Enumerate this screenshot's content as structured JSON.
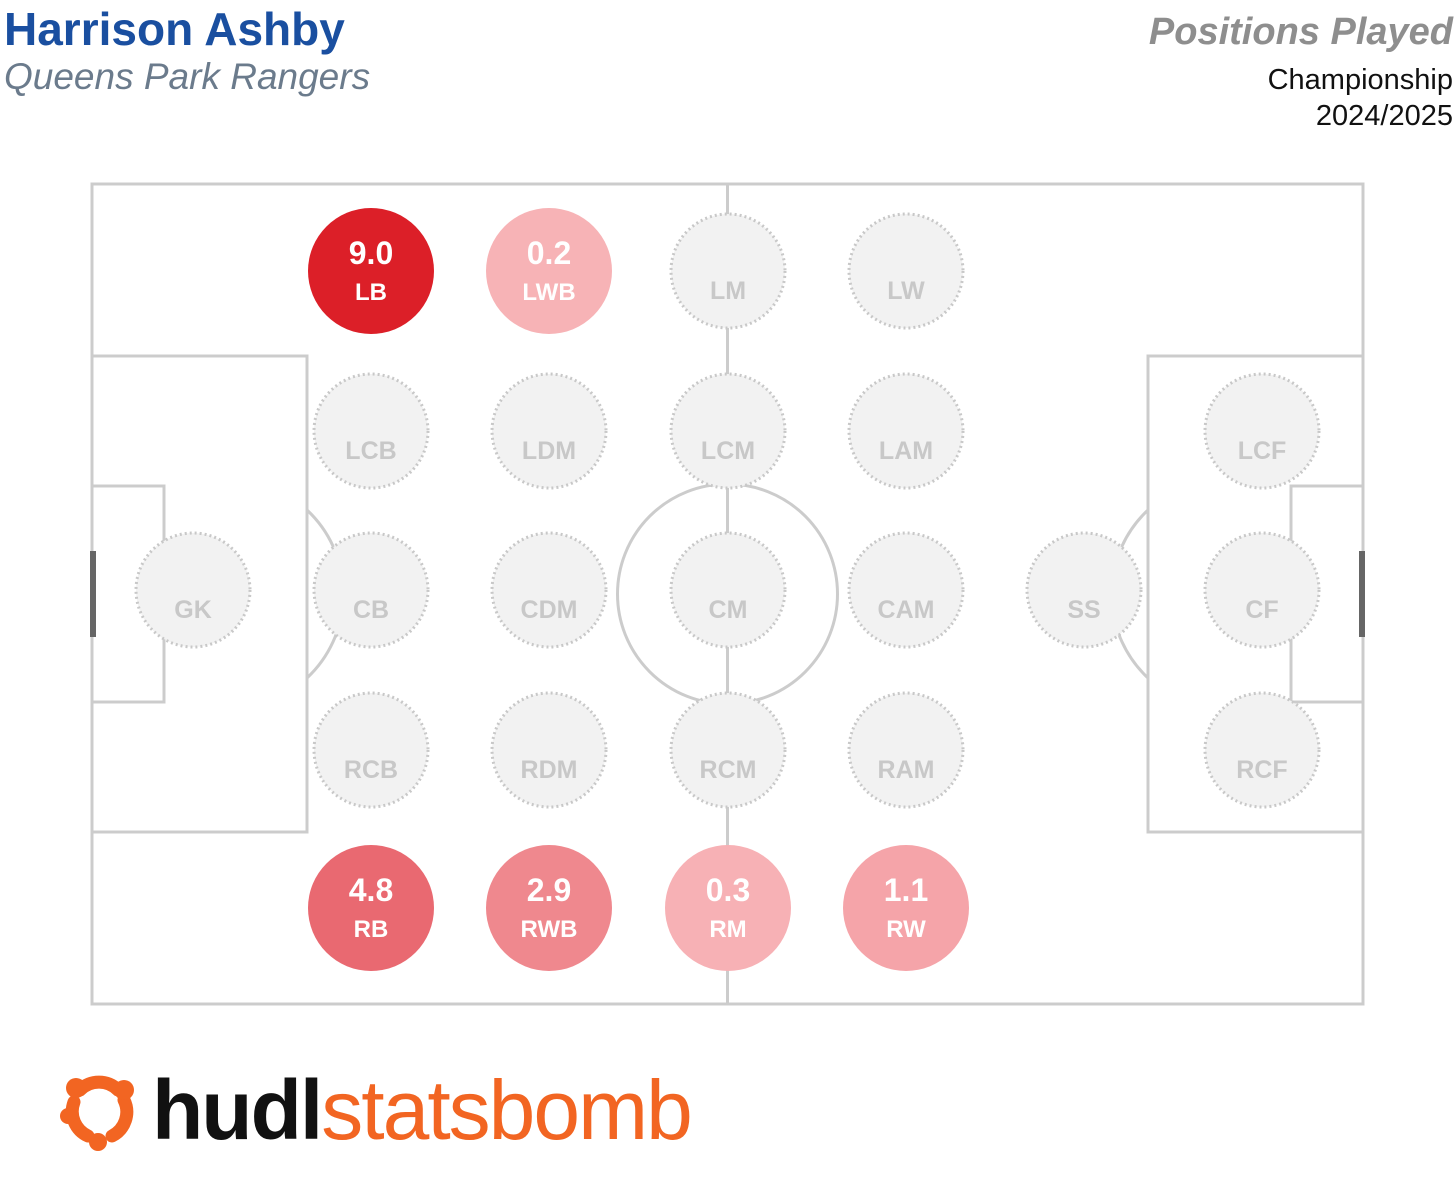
{
  "header": {
    "player_name": "Harrison Ashby",
    "team_name": "Queens Park Rangers",
    "chart_title": "Positions Played",
    "competition": "Championship",
    "season": "2024/2025"
  },
  "brand": {
    "logo_part_1": "hudl",
    "logo_part_2": "statsbomb",
    "logo_icon": "statsbomb-logo-icon",
    "brand_color": "#f26522"
  },
  "colors": {
    "pitch_line": "#cccccc",
    "empty_fill": "#f2f2f2",
    "empty_stroke": "#c8c8c8",
    "empty_text": "#c8c8c8",
    "scale": [
      "#f8b6b9",
      "#ea6e76",
      "#dc1f28"
    ]
  },
  "chart_data": {
    "type": "pitch-position-map",
    "title": "Positions Played",
    "unit": "",
    "positions": [
      {
        "label": "LB",
        "value": 9.0,
        "display": "9.0",
        "row": 0,
        "col": 1
      },
      {
        "label": "LWB",
        "value": 0.2,
        "display": "0.2",
        "row": 0,
        "col": 2
      },
      {
        "label": "LM",
        "value": null,
        "display": "",
        "row": 0,
        "col": 3
      },
      {
        "label": "LW",
        "value": null,
        "display": "",
        "row": 0,
        "col": 4
      },
      {
        "label": "LCB",
        "value": null,
        "display": "",
        "row": 1,
        "col": 1
      },
      {
        "label": "LDM",
        "value": null,
        "display": "",
        "row": 1,
        "col": 2
      },
      {
        "label": "LCM",
        "value": null,
        "display": "",
        "row": 1,
        "col": 3
      },
      {
        "label": "LAM",
        "value": null,
        "display": "",
        "row": 1,
        "col": 4
      },
      {
        "label": "LCF",
        "value": null,
        "display": "",
        "row": 1,
        "col": 6
      },
      {
        "label": "GK",
        "value": null,
        "display": "",
        "row": 2,
        "col": 0
      },
      {
        "label": "CB",
        "value": null,
        "display": "",
        "row": 2,
        "col": 1
      },
      {
        "label": "CDM",
        "value": null,
        "display": "",
        "row": 2,
        "col": 2
      },
      {
        "label": "CM",
        "value": null,
        "display": "",
        "row": 2,
        "col": 3
      },
      {
        "label": "CAM",
        "value": null,
        "display": "",
        "row": 2,
        "col": 4
      },
      {
        "label": "SS",
        "value": null,
        "display": "",
        "row": 2,
        "col": 5
      },
      {
        "label": "CF",
        "value": null,
        "display": "",
        "row": 2,
        "col": 6
      },
      {
        "label": "RCB",
        "value": null,
        "display": "",
        "row": 3,
        "col": 1
      },
      {
        "label": "RDM",
        "value": null,
        "display": "",
        "row": 3,
        "col": 2
      },
      {
        "label": "RCM",
        "value": null,
        "display": "",
        "row": 3,
        "col": 3
      },
      {
        "label": "RAM",
        "value": null,
        "display": "",
        "row": 3,
        "col": 4
      },
      {
        "label": "RCF",
        "value": null,
        "display": "",
        "row": 3,
        "col": 6
      },
      {
        "label": "RB",
        "value": 4.8,
        "display": "4.8",
        "row": 4,
        "col": 1
      },
      {
        "label": "RWB",
        "value": 2.9,
        "display": "2.9",
        "row": 4,
        "col": 2
      },
      {
        "label": "RM",
        "value": 0.3,
        "display": "0.3",
        "row": 4,
        "col": 3
      },
      {
        "label": "RW",
        "value": 1.1,
        "display": "1.1",
        "row": 4,
        "col": 4
      }
    ]
  }
}
